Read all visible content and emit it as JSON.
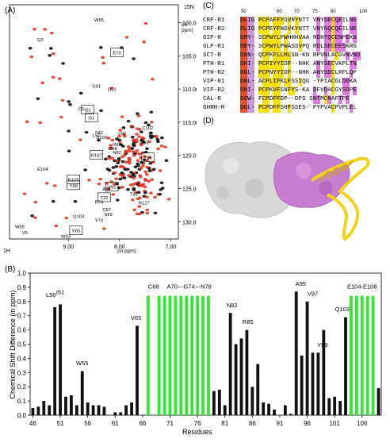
{
  "panelA": {
    "label": "(A)",
    "axis_label_15N": "15N",
    "axis_label_15N_unit": "(in ppm)",
    "axis_label_1H": "1H",
    "axis_label_1H_unit": "(in ppm)",
    "y_ticks": [
      "100.00",
      "105.00",
      "110.00",
      "115.00",
      "120.00",
      "125.00",
      "130.00"
    ],
    "x_ticks": [
      "9.00",
      "8.00",
      "7.00"
    ],
    "peak_labels": [
      "W55",
      "Q3",
      "E70",
      "G91",
      "G52",
      "C3",
      "G1",
      "I51",
      "C102",
      "S42",
      "V97",
      "S100",
      "L50",
      "R85",
      "R107",
      "G93",
      "C68",
      "N82",
      "Y94",
      "E104",
      "E125",
      "Y99",
      "A94",
      "V92",
      "T22",
      "T42",
      "R127",
      "R74",
      "S69",
      "C87",
      "Q103",
      "Y73",
      "V65",
      "W93",
      "W55",
      "V5"
    ]
  },
  "panelB": {
    "label": "(B)",
    "ylabel": "Chemical Shift Difference (in ppm)",
    "xlabel": "Residues",
    "bar_labels": [
      "L50",
      "I51",
      "W55",
      "V65",
      "C68",
      "A70---G74---N78",
      "N82",
      "R85",
      "A95",
      "V97",
      "Y99",
      "Q103",
      "E104-E108"
    ]
  },
  "panelC": {
    "label": "(C)",
    "ruler": [
      "50",
      "60",
      "70",
      "75",
      "80",
      "100"
    ],
    "names": [
      "CRF-R1",
      "CRF-R2",
      "GIP-R",
      "GLP-R1",
      "SCT-R",
      "PTH-R1",
      "PTH-R2",
      "VIP-R1",
      "VIP-R2",
      "CAL-R",
      "GHRH-R"
    ],
    "seqs": [
      "DLIG PCPAFFYGVRYNTT VNYSECQEILNE",
      "DLIG PCPEYFNGVKYNTT VNYSQCQEILNE",
      "DMY- SCPWYLPWHHHVAA RDHTQCENPEKN",
      "DEY- SCPWYLPWASSVPQ RDLSECEESKRG",
      "DNN- QCPKFLLMLSN-KN RPVNLACGVNVND",
      "DHI- PCPIYYIDF--NHK ANYSECVKPLTN",
      "DGL- PCPNYYIDF--NHK ANYSDCLRFLQP",
      "DNL- ACPLIFKLFSSIQG -YPIACGLDDKA",
      "DNI- PCPKVFSNFYS-KA DFVDACGYSDPE",
      "DGW- FCPDFFDP--DPS SNTMCNAFTPE",
      "DGL- PCPDFFSHFSSES- PYPVACPVPLEL"
    ]
  },
  "panelD": {
    "label": "(D)"
  },
  "chart_data": {
    "type": "bar",
    "title": "",
    "xlabel": "Residues",
    "ylabel": "Chemical Shift Difference (in ppm)",
    "ylim": [
      0,
      1.0
    ],
    "x_ticks": [
      46,
      51,
      56,
      61,
      66,
      71,
      76,
      81,
      86,
      91,
      96,
      101,
      106
    ],
    "y_ticks": [
      0.0,
      0.1,
      0.2,
      0.3,
      0.4,
      0.5,
      0.6,
      0.7,
      0.8,
      0.9,
      1.0
    ],
    "residues": [
      46,
      47,
      48,
      49,
      50,
      51,
      52,
      53,
      54,
      55,
      56,
      57,
      58,
      59,
      60,
      61,
      62,
      63,
      64,
      65,
      66,
      67,
      68,
      69,
      70,
      71,
      72,
      73,
      74,
      75,
      76,
      77,
      78,
      79,
      80,
      81,
      82,
      83,
      84,
      85,
      86,
      87,
      88,
      89,
      90,
      91,
      92,
      93,
      94,
      95,
      96,
      97,
      98,
      99,
      100,
      101,
      102,
      103,
      104,
      105,
      106,
      107,
      108,
      109
    ],
    "values": [
      0.05,
      0.06,
      0.1,
      0.07,
      0.76,
      0.78,
      0.13,
      0.14,
      0.07,
      0.31,
      0.09,
      0.07,
      0.07,
      0.06,
      0.0,
      0.02,
      0.02,
      0.07,
      0.09,
      0.63,
      0.0,
      0.84,
      0.0,
      0.84,
      0.84,
      0.84,
      0.84,
      0.84,
      0.84,
      0.84,
      0.84,
      0.84,
      0.84,
      0.17,
      0.18,
      0.07,
      0.72,
      0.5,
      0.54,
      0.6,
      0.2,
      0.36,
      0.09,
      0.08,
      0.04,
      0.0,
      0.07,
      0.01,
      0.87,
      0.42,
      0.8,
      0.44,
      0.44,
      0.6,
      0.12,
      0.13,
      0.1,
      0.69,
      0.84,
      0.84,
      0.84,
      0.84,
      0.84,
      0.19
    ],
    "colors": [
      "k",
      "k",
      "k",
      "k",
      "k",
      "k",
      "k",
      "k",
      "k",
      "k",
      "k",
      "k",
      "k",
      "k",
      "k",
      "k",
      "k",
      "k",
      "k",
      "k",
      "g",
      "g",
      "g",
      "g",
      "g",
      "g",
      "g",
      "g",
      "g",
      "g",
      "g",
      "g",
      "g",
      "k",
      "k",
      "k",
      "k",
      "k",
      "k",
      "k",
      "k",
      "k",
      "k",
      "k",
      "k",
      "k",
      "k",
      "k",
      "k",
      "k",
      "k",
      "k",
      "k",
      "k",
      "k",
      "k",
      "k",
      "k",
      "g",
      "g",
      "g",
      "g",
      "g",
      "k"
    ]
  },
  "colors": {
    "green": "#33e633",
    "black": "#111111",
    "red": "#e03020",
    "yellow": "#f2e012",
    "magenta": "#e07ae0",
    "orange": "#e2502a",
    "violet": "#c99ad8",
    "grey": "#d0d0d0"
  }
}
